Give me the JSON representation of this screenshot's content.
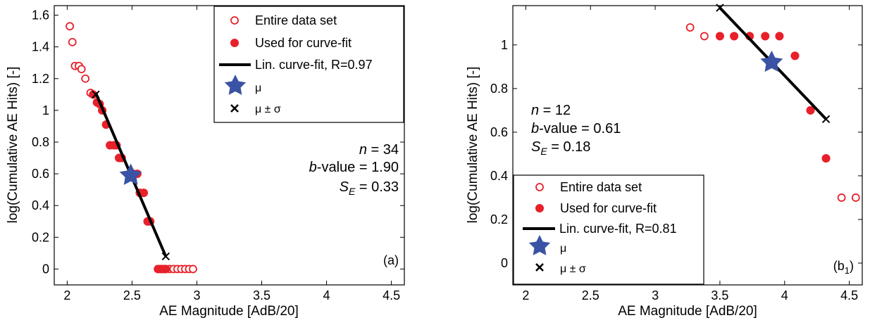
{
  "chart_data": [
    {
      "type": "scatter",
      "panel_label": "(a)",
      "xlabel": "AE Magnitude [AdB/20]",
      "ylabel": "log(Cumulative AE Hits) [-]",
      "xlim": [
        1.9,
        4.6
      ],
      "ylim": [
        -0.1,
        1.66
      ],
      "xticks": [
        "2",
        "2.5",
        "3",
        "3.5",
        "4",
        "4.5"
      ],
      "xtick_values": [
        2,
        2.5,
        3,
        3.5,
        4,
        4.5
      ],
      "yticks": [
        "0",
        "0.2",
        "0.4",
        "0.6",
        "0.8",
        "1",
        "1.2",
        "1.4",
        "1.6"
      ],
      "ytick_values": [
        0,
        0.2,
        0.4,
        0.6,
        0.8,
        1,
        1.2,
        1.4,
        1.6
      ],
      "legend_position": "top-right",
      "legend": [
        "Entire data set",
        "Used for curve-fit",
        "Lin. curve-fit, R=0.97",
        "μ",
        "μ ± σ"
      ],
      "stats": {
        "n_label": "n",
        "n_value": " = 34",
        "b_label": "b",
        "b_value": "-value = 1.90",
        "se_label": "S",
        "se_sub": "E",
        "se_value": " = 0.33"
      },
      "stats_align": "right",
      "series": [
        {
          "role": "entire",
          "points": [
            [
              2.02,
              1.53
            ],
            [
              2.04,
              1.43
            ],
            [
              2.06,
              1.28
            ],
            [
              2.09,
              1.28
            ],
            [
              2.11,
              1.26
            ],
            [
              2.14,
              1.2
            ],
            [
              2.18,
              1.11
            ],
            [
              2.2,
              1.1
            ],
            [
              2.23,
              1.05
            ],
            [
              2.25,
              1.04
            ],
            [
              2.27,
              1
            ],
            [
              2.3,
              0.91
            ],
            [
              2.33,
              0.78
            ],
            [
              2.36,
              0.78
            ],
            [
              2.38,
              0.78
            ],
            [
              2.4,
              0.7
            ],
            [
              2.42,
              0.7
            ],
            [
              2.48,
              0.6
            ],
            [
              2.51,
              0.6
            ],
            [
              2.54,
              0.6
            ],
            [
              2.56,
              0.48
            ],
            [
              2.59,
              0.48
            ],
            [
              2.62,
              0.3
            ],
            [
              2.64,
              0.3
            ],
            [
              2.7,
              0
            ],
            [
              2.72,
              0
            ],
            [
              2.74,
              0
            ],
            [
              2.76,
              0
            ],
            [
              2.79,
              0
            ],
            [
              2.82,
              0
            ],
            [
              2.85,
              0
            ],
            [
              2.88,
              0
            ],
            [
              2.91,
              0
            ],
            [
              2.94,
              0
            ],
            [
              2.97,
              0
            ]
          ]
        },
        {
          "role": "fit",
          "points": [
            [
              2.2,
              1.1
            ],
            [
              2.23,
              1.05
            ],
            [
              2.25,
              1.04
            ],
            [
              2.27,
              1
            ],
            [
              2.3,
              0.91
            ],
            [
              2.33,
              0.78
            ],
            [
              2.36,
              0.78
            ],
            [
              2.38,
              0.78
            ],
            [
              2.4,
              0.7
            ],
            [
              2.42,
              0.7
            ],
            [
              2.51,
              0.6
            ],
            [
              2.54,
              0.6
            ],
            [
              2.56,
              0.48
            ],
            [
              2.59,
              0.48
            ],
            [
              2.62,
              0.3
            ],
            [
              2.64,
              0.3
            ],
            [
              2.7,
              0
            ],
            [
              2.72,
              0
            ],
            [
              2.74,
              0
            ],
            [
              2.76,
              0
            ]
          ]
        }
      ],
      "fit_line": [
        [
          2.22,
          1.11
        ],
        [
          2.76,
          0.08
        ]
      ],
      "mu": [
        2.49,
        0.59
      ],
      "mu_pm_sigma": [
        [
          2.22,
          1.1
        ],
        [
          2.76,
          0.08
        ]
      ]
    },
    {
      "type": "scatter",
      "panel_label": "(b",
      "panel_label_sub": "1",
      "panel_label_end": ")",
      "xlabel": "AE Magnitude [AdB/20]",
      "ylabel": "log(Cumulative AE Hits) [-]",
      "xlim": [
        1.9,
        4.6
      ],
      "ylim": [
        -0.1,
        1.18
      ],
      "xticks": [
        "2",
        "2.5",
        "3",
        "3.5",
        "4",
        "4.5"
      ],
      "xtick_values": [
        2,
        2.5,
        3,
        3.5,
        4,
        4.5
      ],
      "yticks": [
        "0",
        "0.2",
        "0.4",
        "0.6",
        "0.8",
        "1"
      ],
      "ytick_values": [
        0,
        0.2,
        0.4,
        0.6,
        0.8,
        1
      ],
      "legend_position": "bottom-left",
      "legend": [
        "Entire data set",
        "Used for curve-fit",
        "Lin. curve-fit, R=0.81",
        "μ",
        "μ ± σ"
      ],
      "stats": {
        "n_label": "n",
        "n_value": " = 12",
        "b_label": "b",
        "b_value": "-value = 0.61",
        "se_label": "S",
        "se_sub": "E",
        "se_value": " = 0.18"
      },
      "stats_align": "left",
      "series": [
        {
          "role": "entire",
          "points": [
            [
              3.27,
              1.08
            ],
            [
              3.38,
              1.04
            ],
            [
              3.5,
              1.04
            ],
            [
              3.61,
              1.04
            ],
            [
              3.73,
              1.04
            ],
            [
              3.85,
              1.04
            ],
            [
              3.96,
              1.04
            ],
            [
              4.08,
              0.95
            ],
            [
              4.2,
              0.7
            ],
            [
              4.32,
              0.48
            ],
            [
              4.44,
              0.3
            ],
            [
              4.55,
              0.3
            ]
          ]
        },
        {
          "role": "fit",
          "points": [
            [
              3.5,
              1.04
            ],
            [
              3.61,
              1.04
            ],
            [
              3.73,
              1.04
            ],
            [
              3.85,
              1.04
            ],
            [
              3.96,
              1.04
            ],
            [
              4.08,
              0.95
            ],
            [
              4.2,
              0.7
            ],
            [
              4.32,
              0.48
            ]
          ]
        }
      ],
      "fit_line": [
        [
          3.5,
          1.17
        ],
        [
          4.32,
          0.66
        ]
      ],
      "mu": [
        3.9,
        0.92
      ],
      "mu_pm_sigma": [
        [
          3.5,
          1.17
        ],
        [
          4.32,
          0.66
        ]
      ]
    }
  ]
}
